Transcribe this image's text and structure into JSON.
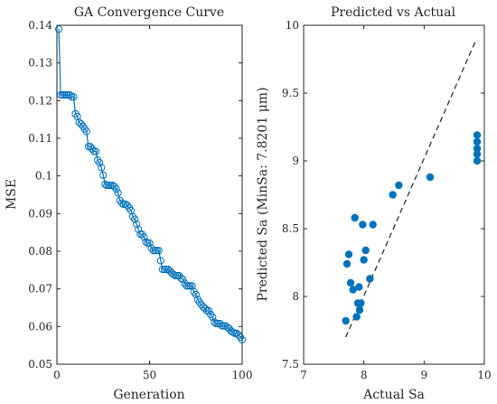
{
  "chart_data": [
    {
      "type": "line",
      "title": "GA Convergence Curve",
      "xlabel": "Generation",
      "ylabel": "MSE",
      "xlim": [
        0,
        100
      ],
      "ylim": [
        0.05,
        0.14
      ],
      "xticks": [
        "0",
        "50",
        "100"
      ],
      "yticks": [
        "0.05",
        "0.06",
        "0.07",
        "0.08",
        "0.09",
        "0.1",
        "0.11",
        "0.12",
        "0.13",
        "0.14"
      ],
      "grid": false,
      "marker": "open-circle",
      "color": "#0072BD",
      "x": [
        1,
        2,
        3,
        4,
        5,
        6,
        7,
        8,
        9,
        10,
        11,
        12,
        13,
        14,
        15,
        16,
        17,
        18,
        19,
        20,
        21,
        22,
        23,
        24,
        25,
        26,
        27,
        28,
        29,
        30,
        31,
        32,
        33,
        34,
        35,
        36,
        37,
        38,
        39,
        40,
        41,
        42,
        43,
        44,
        45,
        46,
        47,
        48,
        49,
        50,
        51,
        52,
        53,
        54,
        55,
        56,
        57,
        58,
        59,
        60,
        61,
        62,
        63,
        64,
        65,
        66,
        67,
        68,
        69,
        70,
        71,
        72,
        73,
        74,
        75,
        76,
        77,
        78,
        79,
        80,
        81,
        82,
        83,
        84,
        85,
        86,
        87,
        88,
        89,
        90,
        91,
        92,
        93,
        94,
        95,
        96,
        97,
        98,
        99,
        100
      ],
      "y": [
        0.139,
        0.1215,
        0.1215,
        0.1215,
        0.1215,
        0.1215,
        0.1215,
        0.121,
        0.121,
        0.1165,
        0.1158,
        0.1142,
        0.1138,
        0.1132,
        0.1125,
        0.1118,
        0.1078,
        0.1078,
        0.1072,
        0.1065,
        0.1065,
        0.1042,
        0.1035,
        0.1022,
        0.1002,
        0.0978,
        0.0975,
        0.0975,
        0.0975,
        0.0975,
        0.0972,
        0.0965,
        0.0955,
        0.0935,
        0.0928,
        0.0925,
        0.0925,
        0.0922,
        0.0915,
        0.0908,
        0.0892,
        0.0885,
        0.0872,
        0.0858,
        0.0845,
        0.0845,
        0.0838,
        0.0825,
        0.0822,
        0.0822,
        0.0808,
        0.0802,
        0.0802,
        0.0802,
        0.0802,
        0.0775,
        0.0752,
        0.0752,
        0.0752,
        0.0752,
        0.0748,
        0.0742,
        0.0738,
        0.0735,
        0.0735,
        0.0735,
        0.0728,
        0.0725,
        0.0715,
        0.0708,
        0.0708,
        0.0708,
        0.0708,
        0.0692,
        0.0685,
        0.0672,
        0.0665,
        0.0658,
        0.0652,
        0.0648,
        0.0642,
        0.0642,
        0.0632,
        0.0625,
        0.0612,
        0.0608,
        0.0608,
        0.0608,
        0.0602,
        0.0602,
        0.0602,
        0.0598,
        0.0595,
        0.0588,
        0.0585,
        0.0582,
        0.0582,
        0.0578,
        0.0572,
        0.0565
      ]
    },
    {
      "type": "scatter",
      "title": "Predicted vs Actual",
      "xlabel": "Actual Sa",
      "ylabel": "Predicted Sa (MinSa: 7.8201 μm)",
      "xlim": [
        7,
        10
      ],
      "ylim": [
        7.5,
        10
      ],
      "xticks": [
        "7",
        "8",
        "9",
        "10"
      ],
      "yticks": [
        "7.5",
        "8",
        "8.5",
        "9",
        "9.5",
        "10"
      ],
      "grid": false,
      "color": "#0072BD",
      "points": [
        [
          7.7,
          7.82
        ],
        [
          7.72,
          8.24
        ],
        [
          7.75,
          8.31
        ],
        [
          7.78,
          8.1
        ],
        [
          7.82,
          8.05
        ],
        [
          7.85,
          8.58
        ],
        [
          7.88,
          7.85
        ],
        [
          7.9,
          7.95
        ],
        [
          7.92,
          8.07
        ],
        [
          7.93,
          7.9
        ],
        [
          7.95,
          7.95
        ],
        [
          7.98,
          8.53
        ],
        [
          8.0,
          8.27
        ],
        [
          8.03,
          8.34
        ],
        [
          8.1,
          8.13
        ],
        [
          8.15,
          8.53
        ],
        [
          8.48,
          8.75
        ],
        [
          8.58,
          8.82
        ],
        [
          9.1,
          8.88
        ],
        [
          9.88,
          9.19
        ],
        [
          9.88,
          9.14
        ],
        [
          9.88,
          9.09
        ],
        [
          9.88,
          9.05
        ],
        [
          9.88,
          9.0
        ]
      ],
      "reference_line": {
        "x": [
          7.7,
          9.85
        ],
        "y": [
          7.7,
          9.88
        ],
        "style": "dashed",
        "color": "#333333"
      }
    }
  ]
}
